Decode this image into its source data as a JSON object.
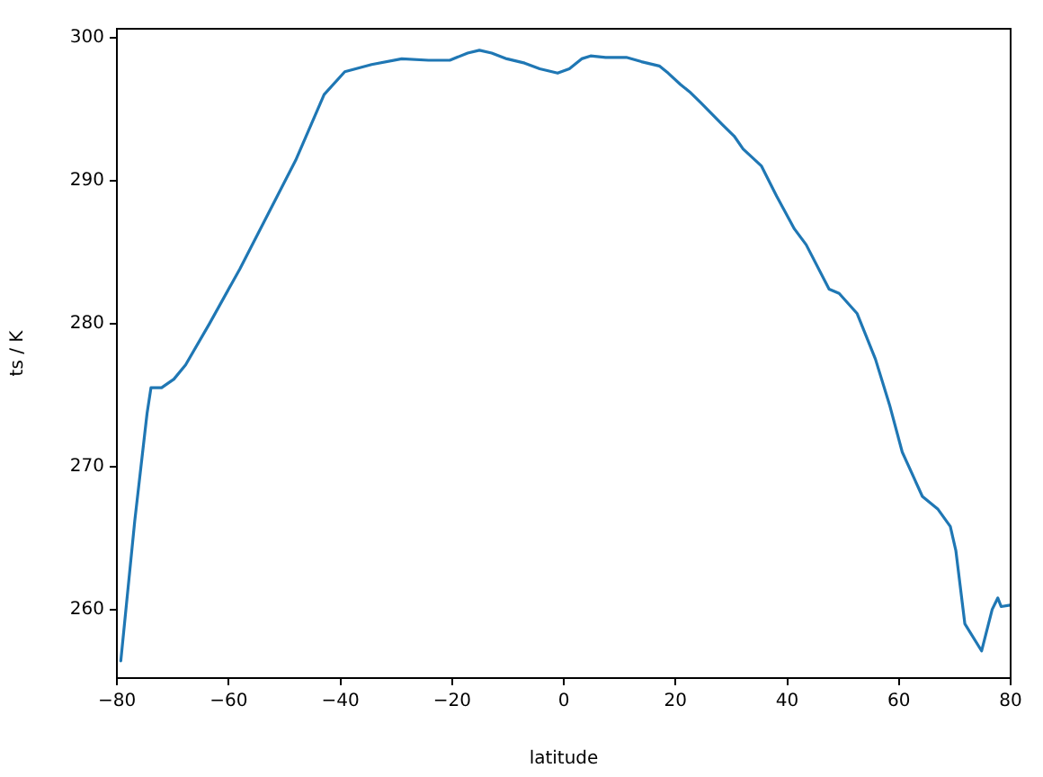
{
  "chart_data": {
    "type": "line",
    "xlabel": "latitude",
    "ylabel": "ts / K",
    "xlim": [
      -80,
      80
    ],
    "ylim": [
      255.2,
      300.6
    ],
    "xticks": [
      -80,
      -60,
      -40,
      -20,
      0,
      20,
      40,
      60,
      80
    ],
    "yticks": [
      260,
      270,
      280,
      290,
      300
    ],
    "grid": false,
    "legend": false,
    "marker": "none",
    "line_style": "solid",
    "series": [
      {
        "color": "#1f77b4",
        "x": [
          -79.3,
          -76.8,
          -74.6,
          -73.9,
          -72,
          -69.8,
          -67.7,
          -63.4,
          -58,
          -53,
          -48,
          -42.9,
          -39.2,
          -34.4,
          -29,
          -24.2,
          -20.4,
          -17.2,
          -15.1,
          -12.9,
          -10.2,
          -7,
          -4.3,
          -1.1,
          1,
          3.2,
          4.8,
          7.5,
          11.2,
          13.9,
          17.1,
          18.7,
          20.9,
          22.5,
          24.6,
          28.4,
          30.5,
          32.1,
          35.4,
          38.1,
          41.3,
          43.4,
          47.5,
          49.3,
          52.5,
          55.8,
          58.4,
          60.6,
          64.2,
          67,
          69.2,
          70.2,
          71.8,
          74.8,
          76.7,
          77.7,
          78.3,
          79.9
        ],
        "values": [
          256.4,
          266.2,
          273.7,
          275.5,
          275.5,
          276.1,
          277.1,
          280,
          283.8,
          287.6,
          291.4,
          296,
          297.6,
          298.1,
          298.5,
          298.4,
          298.4,
          298.9,
          299.1,
          298.9,
          298.5,
          298.2,
          297.8,
          297.5,
          297.8,
          298.5,
          298.7,
          298.6,
          298.6,
          298.3,
          298,
          297.5,
          296.7,
          296.2,
          295.4,
          293.9,
          293.1,
          292.2,
          291,
          288.9,
          286.6,
          285.5,
          282.4,
          282.1,
          280.7,
          277.5,
          274.2,
          271,
          267.9,
          267,
          265.8,
          264.1,
          259,
          257.1,
          260,
          260.8,
          260.2,
          260.3
        ]
      }
    ]
  }
}
